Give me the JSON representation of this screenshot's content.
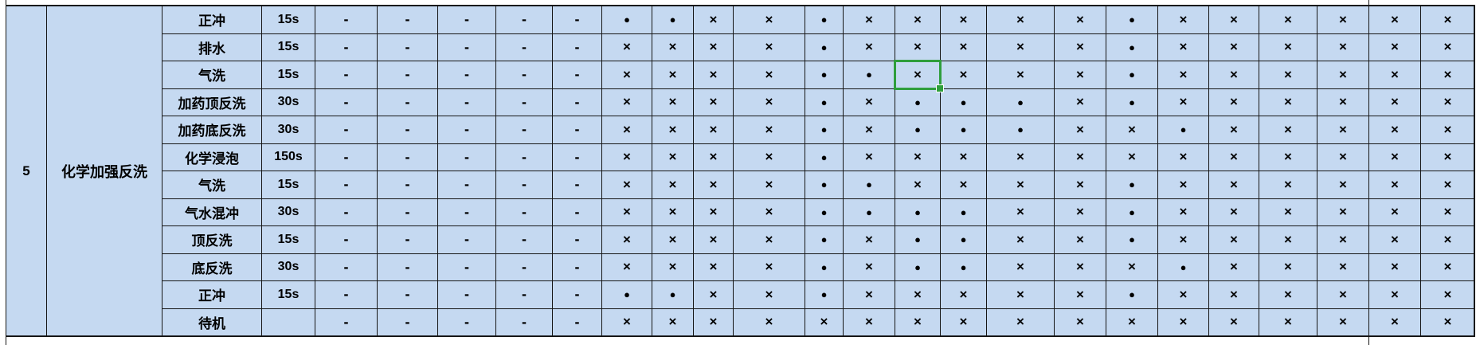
{
  "table": {
    "stage_number": "5",
    "stage_name": "化学加强反洗",
    "selection": {
      "row_index": 2,
      "cell_index": 11
    },
    "rows": [
      {
        "step": "正冲",
        "duration": "15s",
        "cells": [
          "-",
          "-",
          "-",
          "-",
          "-",
          "●",
          "●",
          "×",
          "×",
          "●",
          "×",
          "×",
          "×",
          "×",
          "×",
          "●",
          "×",
          "×",
          "×",
          "×",
          "×",
          "×"
        ]
      },
      {
        "step": "排水",
        "duration": "15s",
        "cells": [
          "-",
          "-",
          "-",
          "-",
          "-",
          "×",
          "×",
          "×",
          "×",
          "●",
          "×",
          "×",
          "×",
          "×",
          "×",
          "●",
          "×",
          "×",
          "×",
          "×",
          "×",
          "×"
        ]
      },
      {
        "step": "气洗",
        "duration": "15s",
        "cells": [
          "-",
          "-",
          "-",
          "-",
          "-",
          "×",
          "×",
          "×",
          "×",
          "●",
          "●",
          "×",
          "×",
          "×",
          "×",
          "●",
          "×",
          "×",
          "×",
          "×",
          "×",
          "×"
        ]
      },
      {
        "step": "加药顶反洗",
        "duration": "30s",
        "cells": [
          "-",
          "-",
          "-",
          "-",
          "-",
          "×",
          "×",
          "×",
          "×",
          "●",
          "×",
          "●",
          "●",
          "●",
          "×",
          "●",
          "×",
          "×",
          "×",
          "×",
          "×",
          "×"
        ]
      },
      {
        "step": "加药底反洗",
        "duration": "30s",
        "cells": [
          "-",
          "-",
          "-",
          "-",
          "-",
          "×",
          "×",
          "×",
          "×",
          "●",
          "×",
          "●",
          "●",
          "●",
          "×",
          "×",
          "●",
          "×",
          "×",
          "×",
          "×",
          "×"
        ]
      },
      {
        "step": "化学浸泡",
        "duration": "150s",
        "cells": [
          "-",
          "-",
          "-",
          "-",
          "-",
          "×",
          "×",
          "×",
          "×",
          "●",
          "×",
          "×",
          "×",
          "×",
          "×",
          "×",
          "×",
          "×",
          "×",
          "×",
          "×",
          "×"
        ]
      },
      {
        "step": "气洗",
        "duration": "15s",
        "cells": [
          "-",
          "-",
          "-",
          "-",
          "-",
          "×",
          "×",
          "×",
          "×",
          "●",
          "●",
          "×",
          "×",
          "×",
          "×",
          "●",
          "×",
          "×",
          "×",
          "×",
          "×",
          "×"
        ]
      },
      {
        "step": "气水混冲",
        "duration": "30s",
        "cells": [
          "-",
          "-",
          "-",
          "-",
          "-",
          "×",
          "×",
          "×",
          "×",
          "●",
          "●",
          "●",
          "●",
          "×",
          "×",
          "●",
          "×",
          "×",
          "×",
          "×",
          "×",
          "×"
        ]
      },
      {
        "step": "顶反洗",
        "duration": "15s",
        "cells": [
          "-",
          "-",
          "-",
          "-",
          "-",
          "×",
          "×",
          "×",
          "×",
          "●",
          "×",
          "●",
          "●",
          "×",
          "×",
          "●",
          "×",
          "×",
          "×",
          "×",
          "×",
          "×"
        ]
      },
      {
        "step": "底反洗",
        "duration": "30s",
        "cells": [
          "-",
          "-",
          "-",
          "-",
          "-",
          "×",
          "×",
          "×",
          "×",
          "●",
          "×",
          "●",
          "●",
          "×",
          "×",
          "×",
          "●",
          "×",
          "×",
          "×",
          "×",
          "×"
        ]
      },
      {
        "step": "正冲",
        "duration": "15s",
        "cells": [
          "-",
          "-",
          "-",
          "-",
          "-",
          "●",
          "●",
          "×",
          "×",
          "●",
          "×",
          "×",
          "×",
          "×",
          "×",
          "●",
          "×",
          "×",
          "×",
          "×",
          "×",
          "×"
        ]
      },
      {
        "step": "待机",
        "duration": "",
        "cells": [
          "-",
          "-",
          "-",
          "-",
          "-",
          "×",
          "×",
          "×",
          "×",
          "×",
          "×",
          "×",
          "×",
          "×",
          "×",
          "×",
          "×",
          "×",
          "×",
          "×",
          "×",
          "×"
        ]
      }
    ]
  },
  "symbols": {
    "active": "●",
    "inactive": "×",
    "not_applicable": "-"
  },
  "colors": {
    "cell_background": "#c5d9f1",
    "grid_line": "#161616",
    "selection_green": "#2f9e3c",
    "text": "#000000"
  }
}
